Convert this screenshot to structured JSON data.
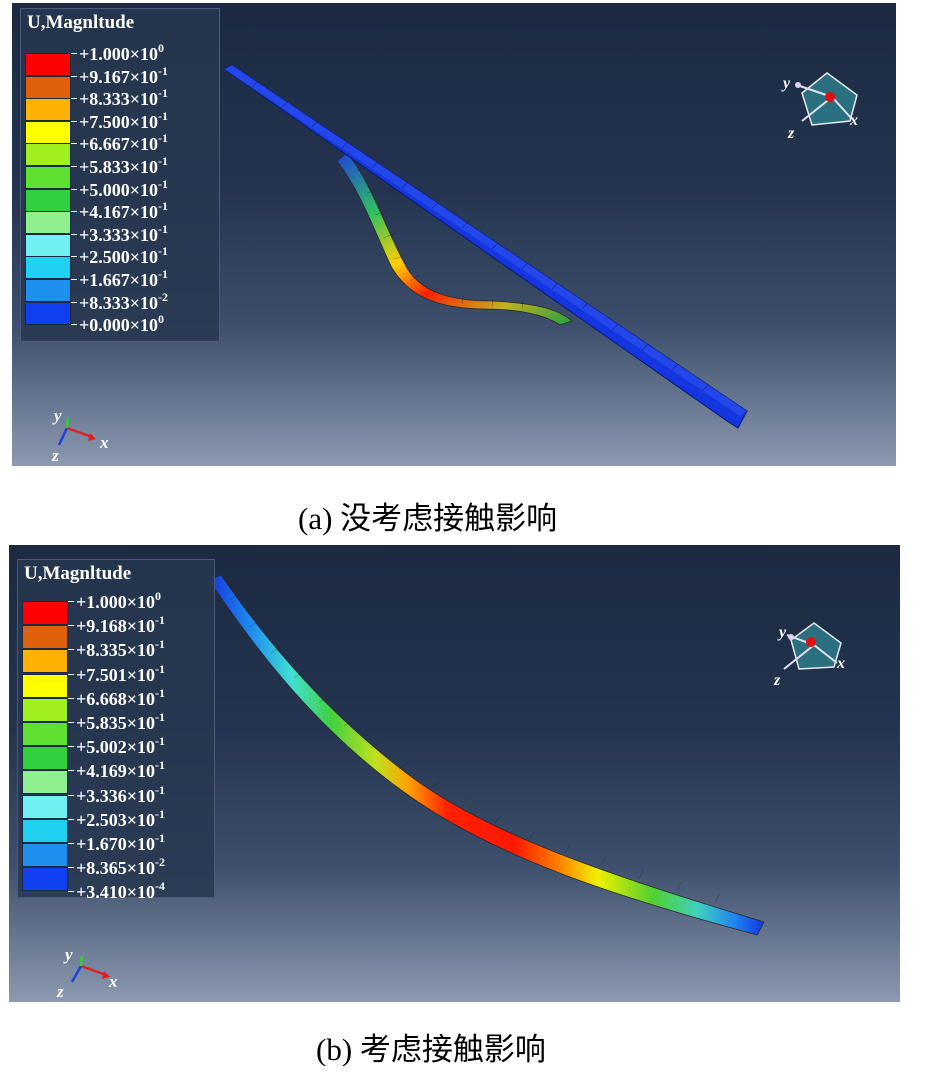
{
  "panels": [
    {
      "id": "a",
      "legend_title": "U,Magnltude",
      "legend": [
        {
          "color": "#ff0000",
          "mantissa": "+1.000",
          "exponent": "0"
        },
        {
          "color": "#e0600c",
          "mantissa": "+9.167",
          "exponent": "-1"
        },
        {
          "color": "#ffb000",
          "mantissa": "+8.333",
          "exponent": "-1"
        },
        {
          "color": "#ffff00",
          "mantissa": "+7.500",
          "exponent": "-1"
        },
        {
          "color": "#a0f020",
          "mantissa": "+6.667",
          "exponent": "-1"
        },
        {
          "color": "#60e030",
          "mantissa": "+5.833",
          "exponent": "-1"
        },
        {
          "color": "#30d040",
          "mantissa": "+5.000",
          "exponent": "-1"
        },
        {
          "color": "#90f090",
          "mantissa": "+4.167",
          "exponent": "-1"
        },
        {
          "color": "#70f0f0",
          "mantissa": "+3.333",
          "exponent": "-1"
        },
        {
          "color": "#20d0f0",
          "mantissa": "+2.500",
          "exponent": "-1"
        },
        {
          "color": "#2090f0",
          "mantissa": "+1.667",
          "exponent": "-1"
        },
        {
          "color": "#1040f0",
          "mantissa": "+8.333",
          "exponent": "-2"
        },
        {
          "color": null,
          "mantissa": "+0.000",
          "exponent": "0"
        }
      ],
      "caption": "(a) 没考虑接触影响",
      "triad_labels": {
        "x": "x",
        "y": "y",
        "z": "z"
      },
      "view_labels": {
        "x": "x",
        "y": "y",
        "z": "z"
      }
    },
    {
      "id": "b",
      "legend_title": "U,Magnltude",
      "legend": [
        {
          "color": "#ff0000",
          "mantissa": "+1.000",
          "exponent": "0"
        },
        {
          "color": "#e0600c",
          "mantissa": "+9.168",
          "exponent": "-1"
        },
        {
          "color": "#ffb000",
          "mantissa": "+8.335",
          "exponent": "-1"
        },
        {
          "color": "#ffff00",
          "mantissa": "+7.501",
          "exponent": "-1"
        },
        {
          "color": "#a0f020",
          "mantissa": "+6.668",
          "exponent": "-1"
        },
        {
          "color": "#60e030",
          "mantissa": "+5.835",
          "exponent": "-1"
        },
        {
          "color": "#30d040",
          "mantissa": "+5.002",
          "exponent": "-1"
        },
        {
          "color": "#90f090",
          "mantissa": "+4.169",
          "exponent": "-1"
        },
        {
          "color": "#70f0f0",
          "mantissa": "+3.336",
          "exponent": "-1"
        },
        {
          "color": "#20d0f0",
          "mantissa": "+2.503",
          "exponent": "-1"
        },
        {
          "color": "#2090f0",
          "mantissa": "+1.670",
          "exponent": "-1"
        },
        {
          "color": "#1040f0",
          "mantissa": "+8.365",
          "exponent": "-2"
        },
        {
          "color": null,
          "mantissa": "+3.410",
          "exponent": "-4"
        }
      ],
      "caption": "(b) 考虑接触影响",
      "triad_labels": {
        "x": "x",
        "y": "y",
        "z": "z"
      },
      "view_labels": {
        "x": "x",
        "y": "y",
        "z": "z"
      }
    }
  ]
}
